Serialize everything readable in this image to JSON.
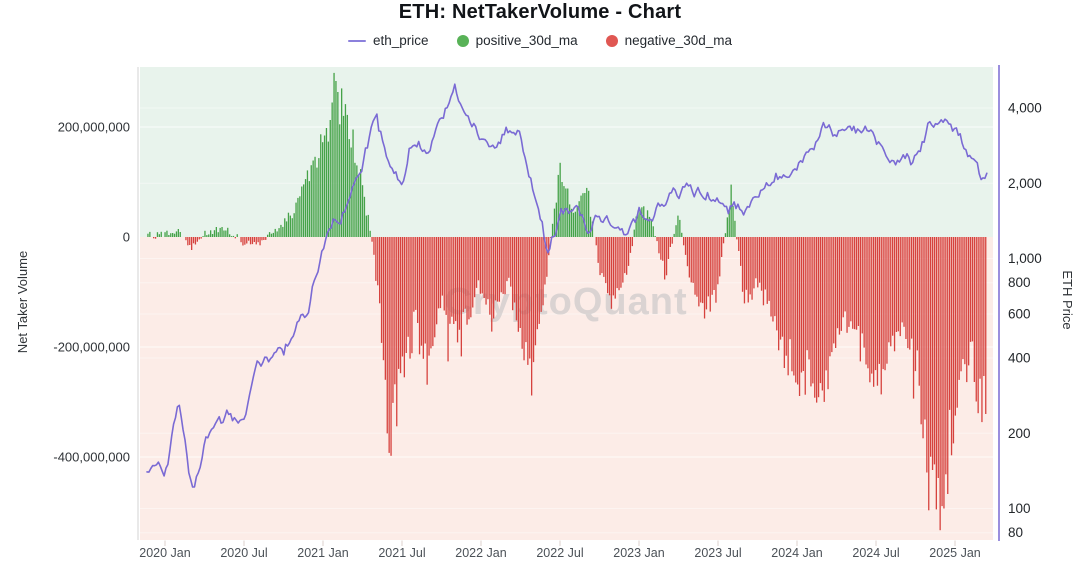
{
  "title": "ETH: NetTakerVolume - Chart",
  "legend": [
    {
      "label": "eth_price",
      "color": "#8b80dc",
      "marker": "line"
    },
    {
      "label": "positive_30d_ma",
      "color": "#58b257",
      "marker": "circle"
    },
    {
      "label": "negative_30d_ma",
      "color": "#e05752",
      "marker": "circle"
    }
  ],
  "watermark": "CryptoQuant",
  "colors": {
    "price_line": "#7a6ad4",
    "positive_bar": "#45a248",
    "negative_bar": "#d6423e",
    "bg_above_zero": "#e8f3ec",
    "bg_below_zero": "#fcece7",
    "right_axis_line": "#7a6ad4",
    "left_axis_line": "#e2e2e2",
    "gridline": "#ffffff"
  },
  "chart_data": {
    "type": "bar",
    "subtype": "bar+line (net taker volume 30d MA bars, ETH price line on log scale)",
    "left_axis": {
      "title": "Net Taker Volume",
      "ticks": [
        "200,000,000",
        "0",
        "-200,000,000",
        "-400,000,000"
      ],
      "tick_values_millions": [
        200,
        0,
        -200,
        -400
      ],
      "scale": "linear"
    },
    "right_axis": {
      "title": "ETH Price",
      "ticks": [
        "4,000",
        "2,000",
        "1,000",
        "800",
        "600",
        "400",
        "200",
        "100",
        "80"
      ],
      "tick_values": [
        4000,
        2000,
        1000,
        800,
        600,
        400,
        200,
        100,
        80
      ],
      "scale": "log"
    },
    "x_ticks": {
      "labels": [
        "2020 Jan",
        "2020 Jul",
        "2021 Jan",
        "2021 Jul",
        "2022 Jan",
        "2022 Jul",
        "2023 Jan",
        "2023 Jul",
        "2024 Jan",
        "2024 Jul",
        "2025 Jan"
      ],
      "month_indices": [
        1,
        7,
        13,
        19,
        25,
        31,
        37,
        43,
        49,
        55,
        61
      ]
    },
    "months": [
      "2019-12",
      "2020-01",
      "2020-02",
      "2020-03",
      "2020-04",
      "2020-05",
      "2020-06",
      "2020-07",
      "2020-08",
      "2020-09",
      "2020-10",
      "2020-11",
      "2020-12",
      "2021-01",
      "2021-02",
      "2021-03",
      "2021-04",
      "2021-05",
      "2021-06",
      "2021-07",
      "2021-08",
      "2021-09",
      "2021-10",
      "2021-11",
      "2021-12",
      "2022-01",
      "2022-02",
      "2022-03",
      "2022-04",
      "2022-05",
      "2022-06",
      "2022-07",
      "2022-08",
      "2022-09",
      "2022-10",
      "2022-11",
      "2022-12",
      "2023-01",
      "2023-02",
      "2023-03",
      "2023-04",
      "2023-05",
      "2023-06",
      "2023-07",
      "2023-08",
      "2023-09",
      "2023-10",
      "2023-11",
      "2023-12",
      "2024-01",
      "2024-02",
      "2024-03",
      "2024-04",
      "2024-05",
      "2024-06",
      "2024-07",
      "2024-08",
      "2024-09",
      "2024-10",
      "2024-11",
      "2024-12",
      "2025-01",
      "2025-02",
      "2025-03"
    ],
    "series": [
      {
        "name": "eth_price",
        "type": "line",
        "units": "USD",
        "values": [
          132,
          130,
          255,
          110,
          172,
          210,
          228,
          240,
          395,
          350,
          385,
          515,
          640,
          1150,
          1500,
          1700,
          2350,
          3900,
          2250,
          2050,
          3150,
          3000,
          4050,
          4600,
          3850,
          3200,
          2700,
          3250,
          2950,
          1950,
          1080,
          1650,
          1700,
          1330,
          1550,
          1250,
          1200,
          1580,
          1640,
          1790,
          1880,
          1850,
          1890,
          1870,
          1680,
          1630,
          1790,
          2050,
          2290,
          2290,
          2950,
          3620,
          3180,
          3750,
          3400,
          3250,
          2550,
          2620,
          2520,
          3350,
          3380,
          3220,
          2730,
          1890
        ]
      },
      {
        "name": "net_taker_volume_30d_ma",
        "type": "bar",
        "units": "millions USD (positive rendered green as positive_30d_ma, negative rendered red as negative_30d_ma)",
        "values": [
          3,
          5,
          12,
          -18,
          7,
          14,
          9,
          -11,
          -19,
          9,
          24,
          58,
          108,
          178,
          268,
          208,
          88,
          -45,
          -355,
          -262,
          -155,
          -238,
          -118,
          -178,
          -142,
          -92,
          -152,
          -72,
          -182,
          -242,
          -58,
          128,
          42,
          95,
          -62,
          -122,
          -82,
          58,
          30,
          -75,
          45,
          -95,
          -125,
          -90,
          85,
          -110,
          -85,
          -130,
          -200,
          -260,
          -245,
          -310,
          -180,
          -155,
          -205,
          -300,
          -195,
          -140,
          -230,
          -395,
          -510,
          -300,
          -185,
          -310
        ]
      }
    ],
    "ylim_left_millions": [
      -520,
      280
    ],
    "ylim_right": [
      80,
      5000
    ],
    "grid": "faint white horizontal lines at axis ticks"
  }
}
